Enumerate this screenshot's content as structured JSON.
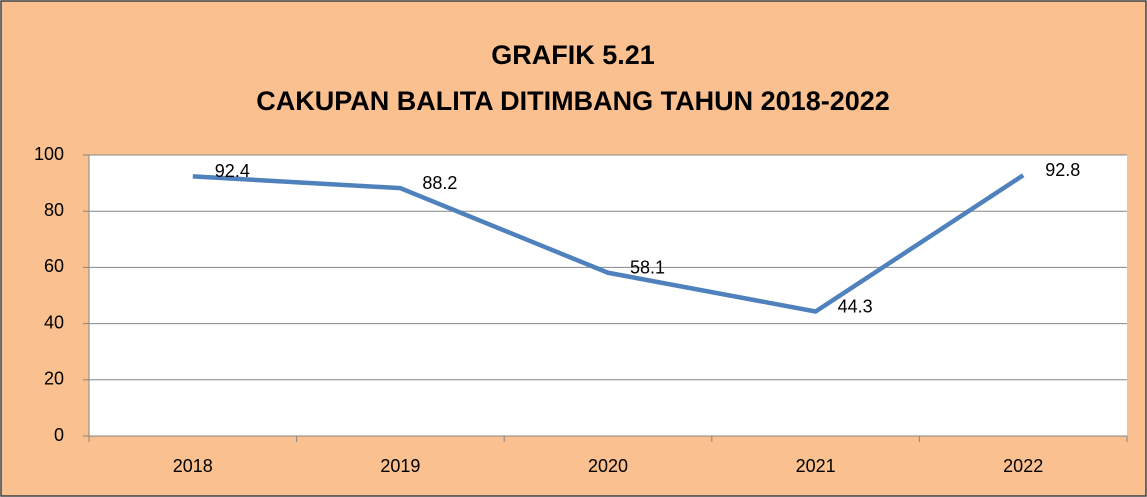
{
  "chart_data": {
    "type": "line",
    "title": "GRAFIK 5.21",
    "subtitle": "CAKUPAN BALITA DITIMBANG TAHUN 2018-2022",
    "categories": [
      "2018",
      "2019",
      "2020",
      "2021",
      "2022"
    ],
    "values": [
      92.4,
      88.2,
      58.1,
      44.3,
      92.8
    ],
    "color": "#4f81bd",
    "ylim": [
      0,
      100
    ],
    "yticks": [
      0,
      20,
      40,
      60,
      80,
      100
    ],
    "grid": true
  }
}
